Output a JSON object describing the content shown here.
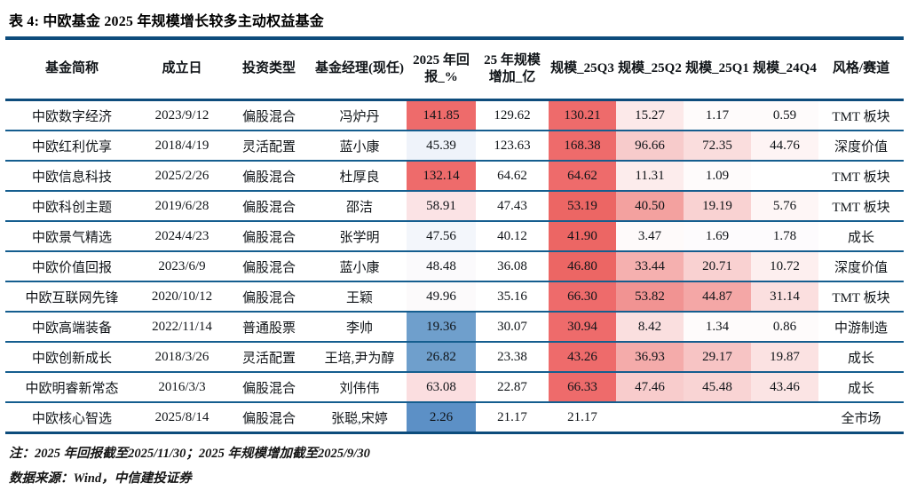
{
  "title": "表 4: 中欧基金 2025 年规模增长较多主动权益基金",
  "table": {
    "columns": [
      "基金简称",
      "成立日",
      "投资类型",
      "基金经理(现任)",
      "2025 年回报_%",
      "25 年规模增加_亿",
      "规模_25Q3",
      "规模_25Q2",
      "规模_25Q1",
      "规模_24Q4",
      "风格/赛道"
    ],
    "rows": [
      {
        "cells": [
          "中欧数字经济",
          "2023/9/12",
          "偏股混合",
          "冯炉丹",
          "141.85",
          "129.62",
          "130.21",
          "15.27",
          "1.17",
          "0.59",
          "TMT 板块"
        ],
        "bg": [
          null,
          null,
          null,
          null,
          "#EE6B6B",
          null,
          "#EE6B6B",
          "#FCE9E9",
          "#FEFBFB",
          "#FEFBFB",
          null
        ]
      },
      {
        "cells": [
          "中欧红利优享",
          "2018/4/19",
          "灵活配置",
          "蓝小康",
          "45.39",
          "123.63",
          "168.38",
          "96.66",
          "72.35",
          "44.76",
          "深度价值"
        ],
        "bg": [
          null,
          null,
          null,
          null,
          "#EFF3FA",
          null,
          "#EE6B6B",
          "#F7CBCB",
          "#FADDDD",
          "#FEF4F4",
          null
        ]
      },
      {
        "cells": [
          "中欧信息科技",
          "2025/2/26",
          "偏股混合",
          "杜厚良",
          "132.14",
          "64.62",
          "64.62",
          "11.31",
          "1.09",
          "",
          "TMT 板块"
        ],
        "bg": [
          null,
          null,
          null,
          null,
          "#EE6B6B",
          null,
          "#EE6B6B",
          "#FCECEC",
          "#FEFBFB",
          null,
          null
        ]
      },
      {
        "cells": [
          "中欧科创主题",
          "2019/6/28",
          "偏股混合",
          "邵洁",
          "58.91",
          "47.43",
          "53.19",
          "40.50",
          "19.19",
          "5.76",
          "TMT 板块"
        ],
        "bg": [
          null,
          null,
          null,
          null,
          "#FBE3E5",
          null,
          "#EC6664",
          "#F3A19F",
          "#F9D2D2",
          "#FEF6F6",
          null
        ]
      },
      {
        "cells": [
          "中欧景气精选",
          "2024/4/23",
          "偏股混合",
          "张学明",
          "47.56",
          "40.12",
          "41.90",
          "3.47",
          "1.69",
          "1.78",
          "成长"
        ],
        "bg": [
          null,
          null,
          null,
          null,
          "#F3F6FB",
          null,
          "#EC6664",
          "#FEFAFA",
          "#FDFBFD",
          "#FDFBFD",
          null
        ]
      },
      {
        "cells": [
          "中欧价值回报",
          "2023/6/9",
          "偏股混合",
          "蓝小康",
          "48.48",
          "36.08",
          "46.80",
          "33.44",
          "20.71",
          "10.72",
          "深度价值"
        ],
        "bg": [
          null,
          null,
          null,
          null,
          "#FBFAFC",
          null,
          "#EC6664",
          "#F5B0AF",
          "#F9D1D1",
          "#FDEFEF",
          null
        ]
      },
      {
        "cells": [
          "中欧互联网先锋",
          "2020/10/12",
          "偏股混合",
          "王颖",
          "49.96",
          "35.16",
          "66.30",
          "53.82",
          "44.87",
          "31.14",
          "TMT 板块"
        ],
        "bg": [
          null,
          null,
          null,
          null,
          "#FCFAFB",
          null,
          "#EE6B6B",
          "#F19392",
          "#F4A7A6",
          "#FBDFDF",
          null
        ]
      },
      {
        "cells": [
          "中欧高端装备",
          "2022/11/14",
          "普通股票",
          "李帅",
          "19.36",
          "30.07",
          "30.94",
          "8.42",
          "1.34",
          "0.86",
          "中游制造"
        ],
        "bg": [
          null,
          null,
          null,
          null,
          "#6F9FCC",
          null,
          "#EE6B6B",
          "#FADFDF",
          "#FEFBFB",
          "#FEFBFB",
          null
        ]
      },
      {
        "cells": [
          "中欧创新成长",
          "2018/3/26",
          "灵活配置",
          "王培,尹为醇",
          "26.82",
          "23.38",
          "43.26",
          "36.93",
          "29.17",
          "19.87",
          "成长"
        ],
        "bg": [
          null,
          null,
          null,
          null,
          "#6F9FCC",
          null,
          "#EE6B6B",
          "#F4ABAA",
          "#F7C4C4",
          "#FBE2E2",
          null
        ]
      },
      {
        "cells": [
          "中欧明睿新常态",
          "2016/3/3",
          "偏股混合",
          "刘伟伟",
          "63.08",
          "22.87",
          "66.33",
          "47.46",
          "45.48",
          "43.46",
          "成长"
        ],
        "bg": [
          null,
          null,
          null,
          null,
          "#FBDEE0",
          null,
          "#EE6B6B",
          "#F8CCCC",
          "#F9D4D4",
          "#FBE4E4",
          null
        ]
      },
      {
        "cells": [
          "中欧核心智选",
          "2025/8/14",
          "偏股混合",
          "张聪,宋婷",
          "2.26",
          "21.17",
          "21.17",
          "",
          "",
          "",
          "全市场"
        ],
        "bg": [
          null,
          null,
          null,
          null,
          "#5C90C6",
          null,
          null,
          null,
          null,
          null,
          null
        ]
      }
    ]
  },
  "notes": [
    "注：2025 年回报截至2025/11/30；2025 年规模增加截至2025/9/30",
    "数据来源：Wind，中信建投证券"
  ],
  "colors": {
    "border_heavy": "#0D4C7C",
    "border_row": "#155E8F",
    "heat_red_strong": "#EE6B6B",
    "heat_blue_strong": "#5C90C6",
    "heat_blue_mid": "#6F9FCC"
  }
}
